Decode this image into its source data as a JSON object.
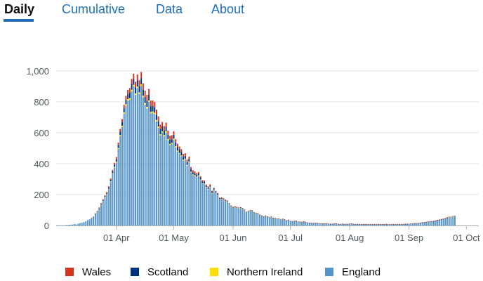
{
  "tabs": [
    {
      "label": "Daily",
      "active": true
    },
    {
      "label": "Cumulative",
      "active": false
    },
    {
      "label": "Data",
      "active": false
    },
    {
      "label": "About",
      "active": false
    }
  ],
  "colors": {
    "tab_link": "#1d70b8",
    "active_tab_text": "#0b0c0c",
    "gridline": "#e6e6e6",
    "axis_text": "#505a5f"
  },
  "chart_data": {
    "type": "bar",
    "stacked": true,
    "title": "",
    "xlabel": "",
    "ylabel": "",
    "ylim": [
      0,
      1000
    ],
    "y_ticks": [
      {
        "value": 0,
        "label": "0"
      },
      {
        "value": 200,
        "label": "200"
      },
      {
        "value": 400,
        "label": "400"
      },
      {
        "value": 600,
        "label": "600"
      },
      {
        "value": 800,
        "label": "800"
      },
      {
        "value": 1000,
        "label": "1,000"
      }
    ],
    "x_tick_labels": [
      "01 Apr",
      "01 May",
      "01 Jun",
      "01 Jul",
      "01 Aug",
      "01 Sep",
      "01 Oct"
    ],
    "x_tick_dates": [
      "2020-04-01",
      "2020-05-01",
      "2020-06-01",
      "2020-07-01",
      "2020-08-01",
      "2020-09-01",
      "2020-10-01"
    ],
    "x_start": "2020-03-01",
    "x_end": "2020-10-07",
    "grid": true,
    "legend_position": "bottom",
    "series": [
      {
        "name": "England",
        "color": "#5694ca",
        "values": [
          2,
          1,
          1,
          1,
          1,
          3,
          4,
          5,
          6,
          9,
          7,
          12,
          15,
          18,
          22,
          28,
          35,
          40,
          48,
          55,
          75,
          90,
          110,
          135,
          158,
          181,
          200,
          234,
          282,
          334,
          375,
          407,
          496,
          579,
          637,
          723,
          775,
          808,
          814,
          869,
          900,
          845,
          889,
          851,
          904,
          830,
          783,
          758,
          800,
          726,
          729,
          721,
          674,
          632,
          583,
          602,
          577,
          602,
          552,
          521,
          527,
          555,
          506,
          479,
          463,
          448,
          420,
          427,
          387,
          409,
          343,
          326,
          321,
          312,
          320,
          294,
          271,
          269,
          246,
          234,
          248,
          208,
          229,
          210,
          198,
          168,
          170,
          165,
          158,
          152,
          137,
          122,
          114,
          119,
          114,
          112,
          113,
          109,
          99,
          84,
          91,
          97,
          95,
          83,
          79,
          77,
          68,
          62,
          57,
          62,
          56,
          52,
          55,
          48,
          46,
          42,
          42,
          36,
          41,
          37,
          32,
          35,
          28,
          26,
          28,
          30,
          24,
          23,
          22,
          25,
          22,
          17,
          16,
          16,
          14,
          16,
          15,
          12,
          11,
          12,
          11,
          13,
          10,
          9,
          9,
          11,
          12,
          9,
          8,
          10,
          8,
          8,
          9,
          10,
          11,
          9,
          7,
          8,
          8,
          7,
          8,
          7,
          8,
          7,
          7,
          6,
          7,
          6,
          8,
          7,
          7,
          7,
          8,
          7,
          6,
          7,
          6,
          7,
          8,
          8,
          8,
          8,
          9,
          9,
          10,
          11,
          12,
          14,
          14,
          15,
          16,
          18,
          19,
          21,
          22,
          24,
          26,
          28,
          30,
          33,
          35,
          38,
          41,
          44,
          48,
          51,
          54,
          58,
          60
        ]
      },
      {
        "name": "Northern Ireland",
        "color": "#ffdd00",
        "values": [
          0,
          0,
          0,
          0,
          0,
          0,
          0,
          0,
          0,
          0,
          0,
          0,
          0,
          0,
          0,
          0,
          0,
          0,
          0,
          0,
          1,
          1,
          1,
          1,
          2,
          2,
          3,
          3,
          4,
          4,
          5,
          6,
          6,
          7,
          8,
          9,
          9,
          10,
          10,
          10,
          10,
          10,
          10,
          10,
          10,
          10,
          10,
          10,
          9,
          9,
          9,
          9,
          9,
          9,
          8,
          8,
          8,
          8,
          8,
          7,
          7,
          7,
          7,
          6,
          6,
          6,
          6,
          5,
          5,
          5,
          5,
          4,
          4,
          4,
          4,
          4,
          3,
          3,
          3,
          3,
          3,
          3,
          2,
          2,
          2,
          2,
          2,
          2,
          2,
          2,
          1,
          1,
          1,
          1,
          1,
          1,
          1,
          1,
          1,
          1,
          1,
          1,
          1,
          1,
          1,
          1,
          1,
          1,
          1,
          1,
          1,
          1,
          1,
          1,
          1,
          1,
          1,
          1,
          1,
          1,
          0,
          0,
          0,
          0,
          0,
          0,
          0,
          0,
          0,
          0,
          0,
          0,
          0,
          0,
          0,
          0,
          0,
          0,
          0,
          0,
          0,
          0,
          0,
          0,
          0,
          0,
          0,
          0,
          0,
          0,
          0,
          0,
          0,
          0,
          0,
          0,
          0,
          0,
          0,
          0,
          0,
          0,
          0,
          0,
          0,
          0,
          0,
          0,
          0,
          0,
          0,
          0,
          0,
          0,
          0,
          0,
          0,
          0,
          0,
          0,
          0,
          0,
          0,
          0,
          0,
          0,
          0,
          0,
          0,
          0,
          0,
          0,
          0,
          0,
          0,
          0,
          0,
          0,
          0,
          0,
          0,
          0,
          0,
          0,
          1,
          1,
          1,
          1,
          1,
          1,
          1
        ]
      },
      {
        "name": "Scotland",
        "color": "#003078",
        "values": [
          0,
          0,
          0,
          0,
          0,
          0,
          0,
          0,
          0,
          0,
          0,
          0,
          0,
          0,
          0,
          0,
          0,
          0,
          0,
          1,
          1,
          2,
          3,
          4,
          5,
          6,
          7,
          8,
          10,
          12,
          14,
          16,
          18,
          21,
          24,
          27,
          30,
          32,
          35,
          37,
          38,
          39,
          40,
          40,
          40,
          40,
          40,
          39,
          38,
          37,
          36,
          35,
          34,
          33,
          32,
          31,
          30,
          29,
          28,
          27,
          26,
          25,
          24,
          23,
          22,
          21,
          20,
          19,
          18,
          17,
          16,
          15,
          14,
          13,
          12,
          11,
          11,
          10,
          9,
          8,
          8,
          7,
          7,
          6,
          6,
          5,
          5,
          5,
          4,
          4,
          4,
          3,
          3,
          3,
          3,
          2,
          2,
          2,
          2,
          2,
          2,
          1,
          1,
          1,
          1,
          1,
          1,
          1,
          1,
          1,
          1,
          1,
          1,
          1,
          1,
          1,
          1,
          1,
          1,
          1,
          1,
          1,
          1,
          1,
          1,
          1,
          1,
          1,
          1,
          1,
          1,
          1,
          1,
          1,
          1,
          1,
          1,
          1,
          1,
          1,
          1,
          1,
          1,
          1,
          1,
          1,
          1,
          1,
          1,
          1,
          1,
          1,
          1,
          1,
          1,
          1,
          1,
          1,
          1,
          1,
          1,
          1,
          1,
          1,
          1,
          1,
          1,
          1,
          1,
          1,
          1,
          1,
          1,
          1,
          1,
          1,
          1,
          1,
          1,
          1,
          1,
          1,
          1,
          1,
          1,
          1,
          1,
          1,
          1,
          1,
          1,
          1,
          1,
          1,
          1,
          1,
          1,
          1,
          1,
          1,
          1,
          1,
          1,
          1,
          1,
          2,
          2,
          2,
          2,
          2,
          2,
          2
        ]
      },
      {
        "name": "Wales",
        "color": "#d4351c",
        "values": [
          0,
          0,
          0,
          0,
          0,
          0,
          0,
          0,
          0,
          0,
          0,
          0,
          0,
          0,
          0,
          0,
          0,
          0,
          1,
          1,
          2,
          2,
          3,
          4,
          5,
          6,
          7,
          8,
          9,
          10,
          12,
          14,
          16,
          18,
          20,
          22,
          25,
          27,
          30,
          32,
          34,
          36,
          38,
          39,
          40,
          40,
          39,
          38,
          37,
          36,
          35,
          34,
          33,
          32,
          30,
          29,
          28,
          27,
          26,
          25,
          24,
          23,
          22,
          21,
          20,
          19,
          18,
          17,
          16,
          15,
          14,
          13,
          12,
          11,
          10,
          10,
          9,
          9,
          8,
          8,
          7,
          7,
          6,
          6,
          5,
          5,
          5,
          4,
          4,
          4,
          3,
          3,
          3,
          3,
          3,
          2,
          2,
          2,
          2,
          2,
          2,
          2,
          2,
          2,
          1,
          1,
          1,
          1,
          1,
          1,
          1,
          1,
          1,
          1,
          1,
          1,
          1,
          1,
          1,
          1,
          1,
          1,
          1,
          1,
          1,
          1,
          1,
          1,
          1,
          1,
          1,
          1,
          1,
          1,
          1,
          1,
          1,
          1,
          1,
          1,
          1,
          1,
          1,
          1,
          1,
          1,
          1,
          1,
          1,
          1,
          1,
          1,
          1,
          1,
          1,
          1,
          1,
          1,
          1,
          1,
          1,
          1,
          1,
          1,
          1,
          1,
          1,
          1,
          1,
          1,
          1,
          1,
          1,
          1,
          1,
          1,
          1,
          1,
          1,
          1,
          1,
          1,
          1,
          1,
          1,
          1,
          1,
          1,
          1,
          1,
          1,
          2,
          2,
          2,
          2,
          2,
          2,
          2,
          2,
          3,
          3,
          3,
          3,
          3,
          3,
          3
        ]
      }
    ],
    "legend": [
      {
        "name": "Wales",
        "color": "#d4351c"
      },
      {
        "name": "Scotland",
        "color": "#003078"
      },
      {
        "name": "Northern Ireland",
        "color": "#ffdd00"
      },
      {
        "name": "England",
        "color": "#5694ca"
      }
    ]
  }
}
